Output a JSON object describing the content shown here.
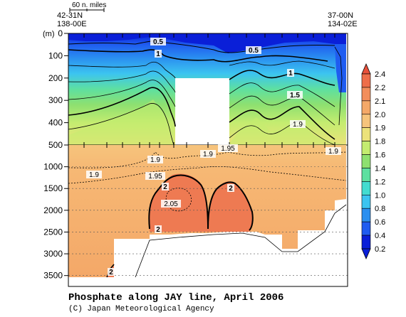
{
  "chart_data": {
    "type": "contour",
    "title": "Phosphate along JAY line, April 2006",
    "credit": "(C) Japan Meteorological Agency",
    "scale_label": "60 n. miles",
    "y_unit": "(m)",
    "left_station": {
      "lat": "42-31N",
      "lon": "138-00E"
    },
    "right_station": {
      "lat": "37-00N",
      "lon": "134-02E"
    },
    "y_ticks_upper": [
      "0",
      "100",
      "200",
      "300",
      "400",
      "500"
    ],
    "y_ticks_lower": [
      "1000",
      "1500",
      "2000",
      "2500",
      "3000",
      "3500"
    ],
    "y_upper_range": [
      0,
      500
    ],
    "y_lower_range": [
      500,
      3750
    ],
    "colorbar": {
      "levels": [
        "0.2",
        "0.4",
        "0.6",
        "0.8",
        "1.0",
        "1.2",
        "1.4",
        "1.6",
        "1.8",
        "1.9",
        "2.0",
        "2.1",
        "2.2",
        "2.4"
      ],
      "colors": [
        "#0a1fd8",
        "#1f5cf0",
        "#2a8ff0",
        "#3cc4f0",
        "#43dcd0",
        "#5ee0a0",
        "#8ee070",
        "#c4ec70",
        "#ece27a",
        "#f6c47c",
        "#f4a868",
        "#f28e5c",
        "#ee6e4a",
        "#e8503a"
      ]
    },
    "contour_labels": [
      "0.5",
      "1",
      "0.5",
      "1",
      "1.5",
      "1.9",
      "1.9",
      "1.9",
      "1.95",
      "1.9",
      "1.9",
      "1.95",
      "2",
      "2",
      "2.05",
      "2",
      "2"
    ],
    "domain_colors": {
      "upper_blue": "#1236e6",
      "mid_teal": "#3cc4f0",
      "mid_green": "#8ee070",
      "deep_orange": "#f6b070",
      "core_red": "#ee7a52",
      "no_data": "#ffffff"
    }
  }
}
